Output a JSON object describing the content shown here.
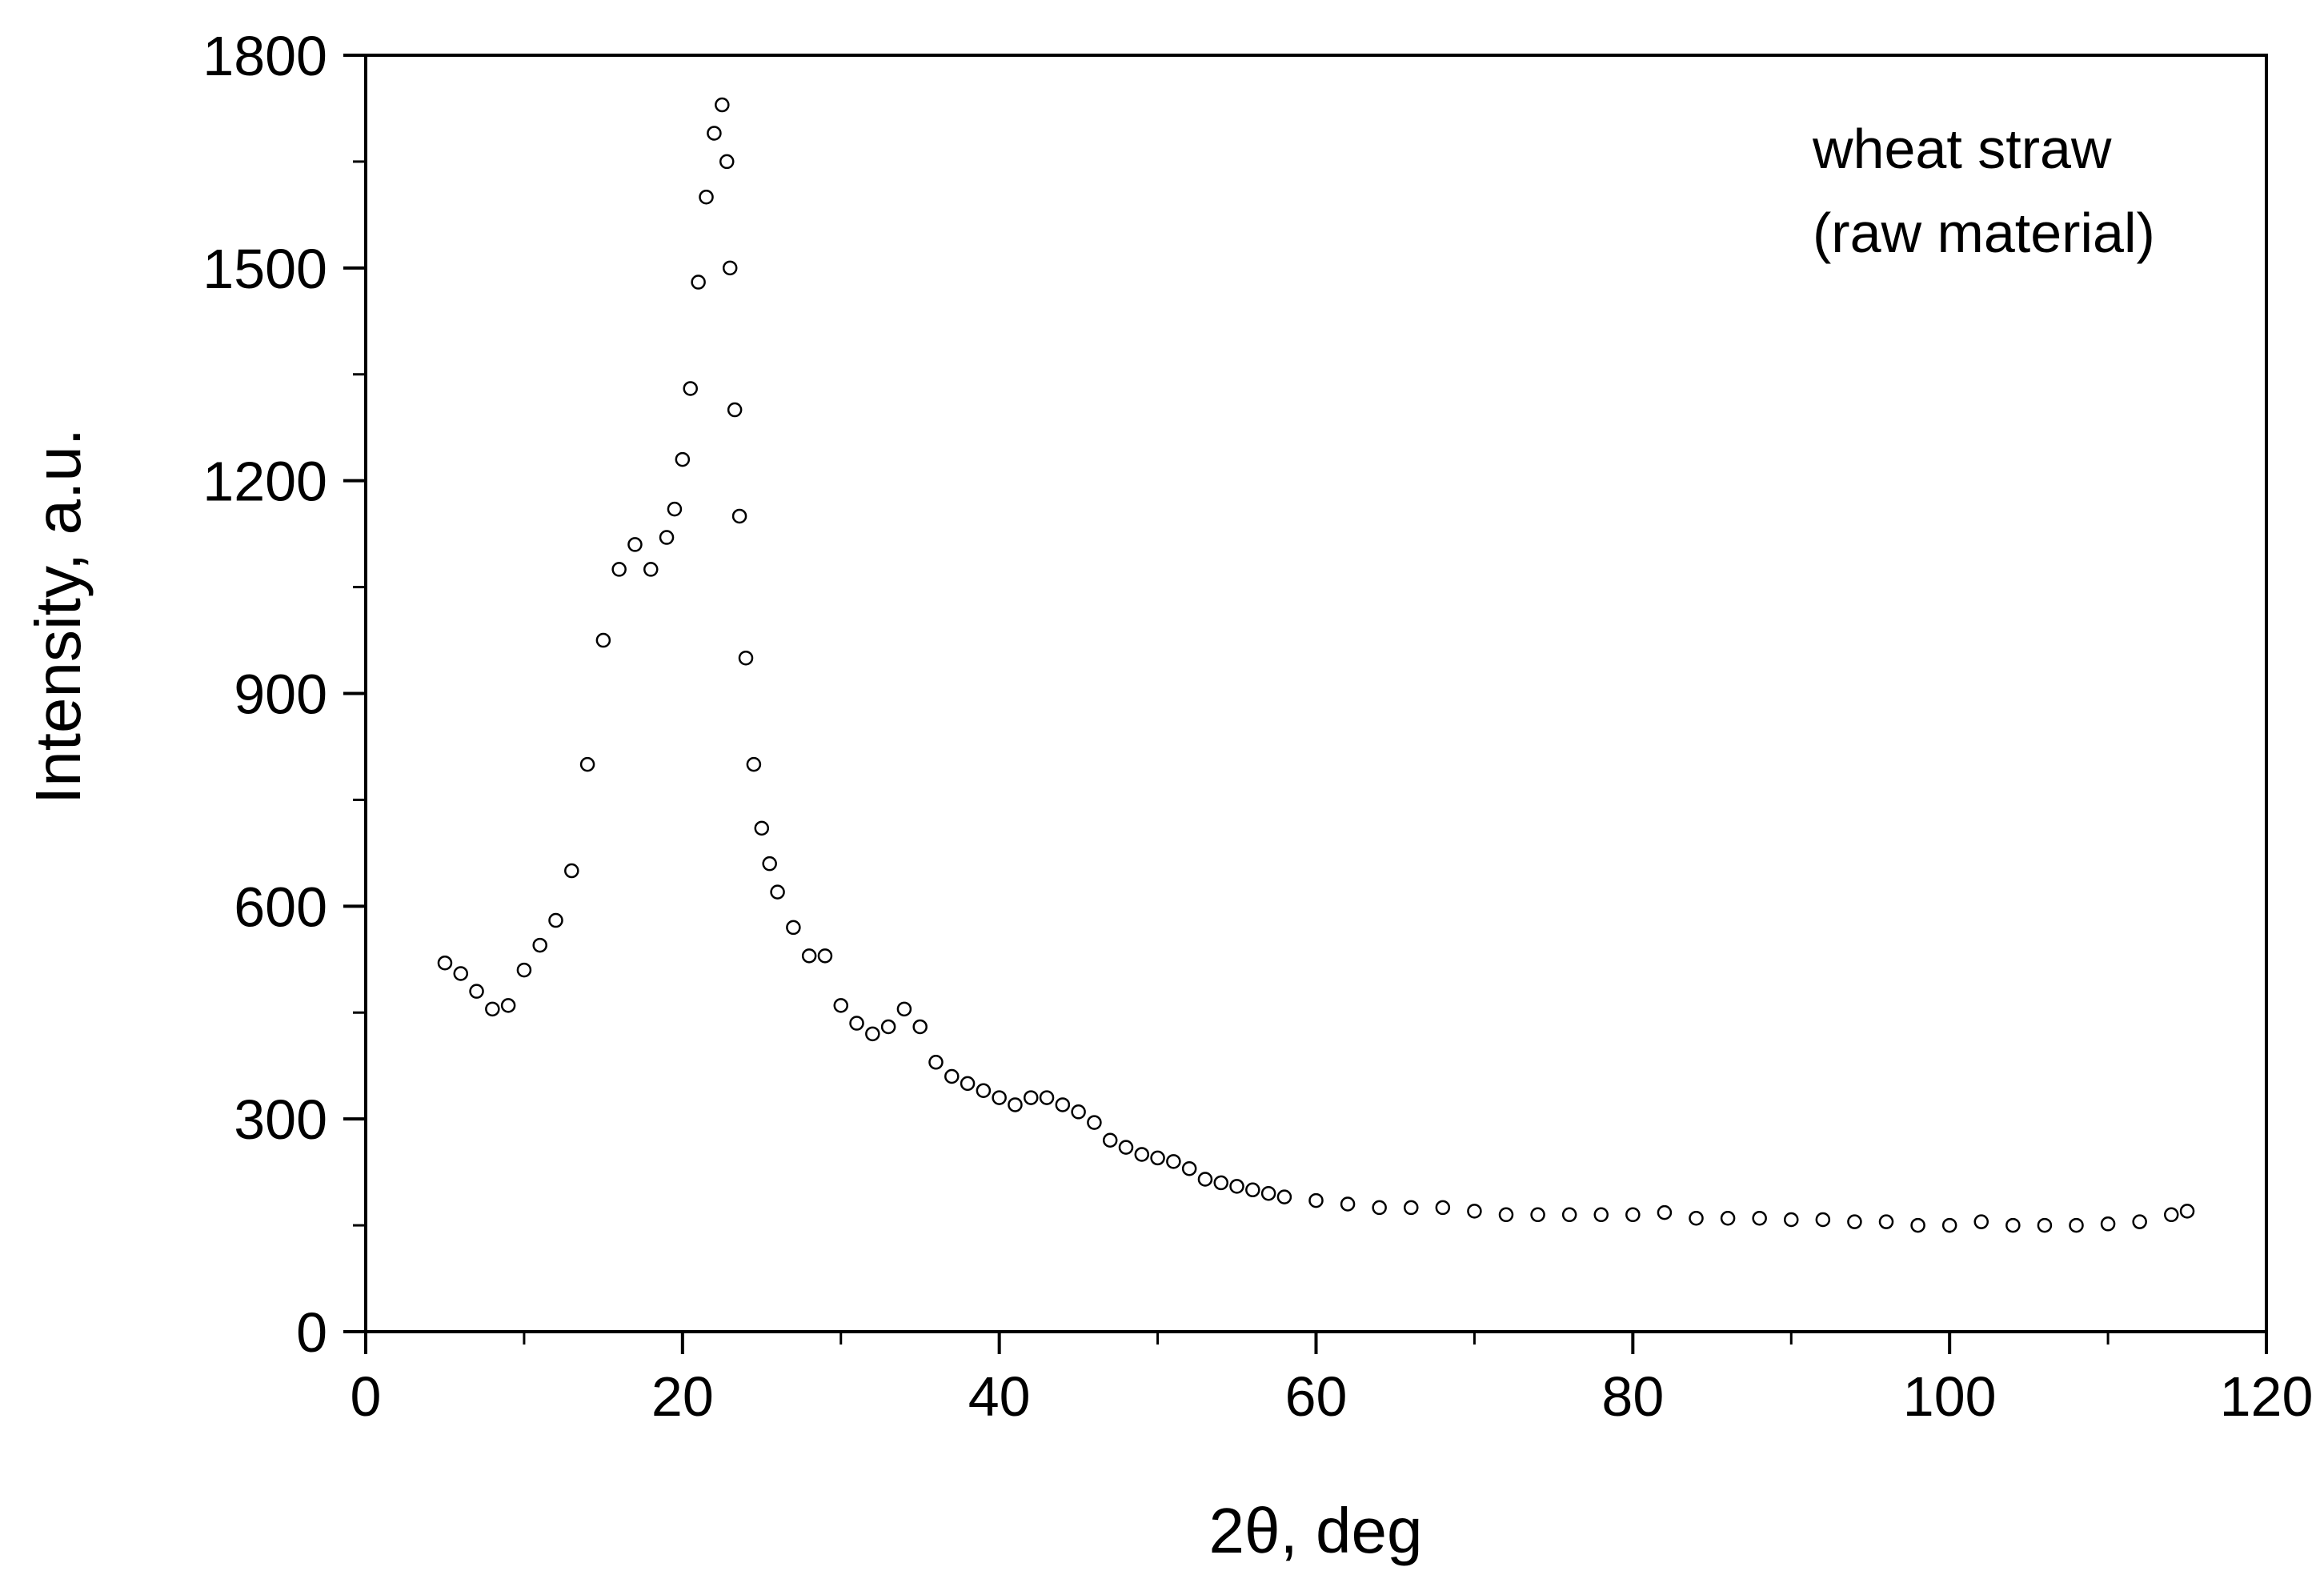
{
  "chart_data": {
    "type": "scatter",
    "title": "",
    "xlabel": "2θ, deg",
    "ylabel": "Intensity, a.u.",
    "xlim": [
      0,
      120
    ],
    "ylim": [
      0,
      1800
    ],
    "xticks": [
      0,
      20,
      40,
      60,
      80,
      100,
      120
    ],
    "xtick_labels": [
      "0",
      "20",
      "40",
      "60",
      "80",
      "100",
      "120"
    ],
    "yticks": [
      0,
      300,
      600,
      900,
      1200,
      1500,
      1800
    ],
    "ytick_labels": [
      "0",
      "300",
      "600",
      "900",
      "1200",
      "1500",
      "1800"
    ],
    "grid": false,
    "annotation": [
      "wheat straw",
      "(raw material)"
    ],
    "marker": "open-circle",
    "marker_color": "#000000",
    "series": [
      {
        "name": "wheat straw (raw material)",
        "x": [
          5,
          6,
          7,
          8,
          9,
          10,
          11,
          12,
          13,
          14,
          15,
          16,
          17,
          18,
          19,
          19.5,
          20,
          20.5,
          21,
          21.5,
          22,
          22.5,
          22.8,
          23,
          23.3,
          23.6,
          24,
          24.5,
          25,
          25.5,
          26,
          27,
          28,
          29,
          30,
          31,
          32,
          33,
          34,
          35,
          36,
          37,
          38,
          39,
          40,
          41,
          42,
          43,
          44,
          45,
          46,
          47,
          48,
          49,
          50,
          51,
          52,
          53,
          54,
          55,
          56,
          57,
          58,
          60,
          62,
          64,
          66,
          68,
          70,
          72,
          74,
          76,
          78,
          80,
          82,
          84,
          86,
          88,
          90,
          92,
          94,
          96,
          98,
          100,
          102,
          104,
          106,
          108,
          110,
          112,
          114,
          115
        ],
        "y": [
          520,
          505,
          480,
          455,
          460,
          510,
          545,
          580,
          650,
          800,
          975,
          1075,
          1110,
          1075,
          1120,
          1160,
          1230,
          1330,
          1480,
          1600,
          1690,
          1730,
          1650,
          1500,
          1300,
          1150,
          950,
          800,
          710,
          660,
          620,
          570,
          530,
          530,
          460,
          435,
          420,
          430,
          455,
          430,
          380,
          360,
          350,
          340,
          330,
          320,
          330,
          330,
          320,
          310,
          295,
          270,
          260,
          250,
          245,
          240,
          230,
          215,
          210,
          205,
          200,
          195,
          190,
          185,
          180,
          175,
          175,
          175,
          170,
          165,
          165,
          165,
          165,
          165,
          168,
          160,
          160,
          160,
          158,
          158,
          155,
          155,
          150,
          150,
          155,
          150,
          150,
          150,
          152,
          155,
          165,
          170
        ]
      }
    ]
  }
}
